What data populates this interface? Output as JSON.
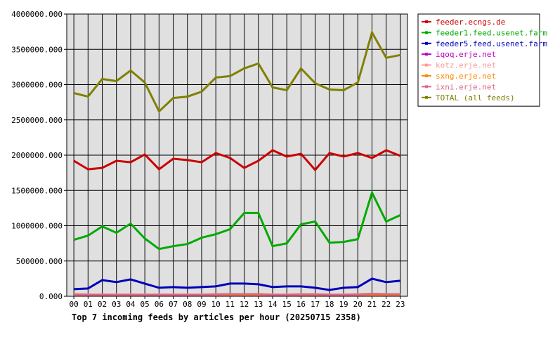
{
  "chart_data": {
    "type": "line",
    "title": "Top 7 incoming feeds by articles per hour (20250715 2358)",
    "xlabel": "",
    "ylabel": "",
    "ylim": [
      0,
      4000000
    ],
    "yticks": [
      "0.000",
      "500000.000",
      "1000000.000",
      "1500000.000",
      "2000000.000",
      "2500000.000",
      "3000000.000",
      "3500000.000",
      "4000000.000"
    ],
    "categories": [
      "00",
      "01",
      "02",
      "03",
      "04",
      "05",
      "06",
      "07",
      "08",
      "09",
      "10",
      "11",
      "12",
      "13",
      "14",
      "15",
      "16",
      "17",
      "18",
      "19",
      "20",
      "21",
      "22",
      "23"
    ],
    "grid": true,
    "legend_position": "right",
    "background": "#e0e0e0",
    "series": [
      {
        "name": "feeder.ecngs.de",
        "color": "#cc0000",
        "values": [
          1920000,
          1800000,
          1820000,
          1920000,
          1900000,
          2010000,
          1800000,
          1950000,
          1930000,
          1900000,
          2030000,
          1960000,
          1820000,
          1920000,
          2070000,
          1980000,
          2020000,
          1790000,
          2030000,
          1980000,
          2030000,
          1960000,
          2070000,
          1990000
        ]
      },
      {
        "name": "feeder1.feed.usenet.farm",
        "color": "#00aa00",
        "values": [
          800000,
          860000,
          990000,
          900000,
          1030000,
          820000,
          670000,
          710000,
          740000,
          830000,
          880000,
          950000,
          1180000,
          1180000,
          710000,
          750000,
          1020000,
          1060000,
          760000,
          770000,
          810000,
          1470000,
          1060000,
          1150000
        ]
      },
      {
        "name": "feeder5.feed.usenet.farm",
        "color": "#0000bb",
        "values": [
          100000,
          110000,
          230000,
          200000,
          240000,
          180000,
          120000,
          130000,
          120000,
          130000,
          140000,
          180000,
          180000,
          170000,
          130000,
          140000,
          140000,
          120000,
          90000,
          120000,
          130000,
          250000,
          200000,
          220000
        ]
      },
      {
        "name": "iqoq.erje.net",
        "color": "#bb00bb",
        "values": [
          20000,
          20000,
          20000,
          20000,
          20000,
          20000,
          20000,
          20000,
          20000,
          20000,
          20000,
          20000,
          20000,
          20000,
          20000,
          20000,
          20000,
          20000,
          20000,
          20000,
          20000,
          20000,
          20000,
          20000
        ]
      },
      {
        "name": "kotz.erje.net",
        "color": "#ff9999",
        "values": [
          30000,
          25000,
          25000,
          25000,
          25000,
          25000,
          25000,
          25000,
          25000,
          25000,
          30000,
          30000,
          30000,
          30000,
          25000,
          25000,
          30000,
          30000,
          25000,
          25000,
          30000,
          35000,
          30000,
          30000
        ]
      },
      {
        "name": "sxng.erje.net",
        "color": "#ff8800",
        "values": [
          15000,
          15000,
          15000,
          15000,
          15000,
          15000,
          15000,
          15000,
          15000,
          15000,
          15000,
          15000,
          15000,
          15000,
          15000,
          15000,
          15000,
          15000,
          15000,
          15000,
          15000,
          15000,
          15000,
          15000
        ]
      },
      {
        "name": "ixni.erje.net",
        "color": "#dd6688",
        "values": [
          25000,
          20000,
          20000,
          20000,
          20000,
          20000,
          20000,
          20000,
          20000,
          20000,
          25000,
          30000,
          30000,
          30000,
          20000,
          20000,
          25000,
          25000,
          20000,
          20000,
          25000,
          35000,
          30000,
          30000
        ]
      },
      {
        "name": "TOTAL (all feeds)",
        "color": "#808000",
        "values": [
          2880000,
          2830000,
          3080000,
          3050000,
          3200000,
          3030000,
          2620000,
          2810000,
          2830000,
          2900000,
          3100000,
          3120000,
          3230000,
          3300000,
          2960000,
          2920000,
          3230000,
          3020000,
          2930000,
          2920000,
          3030000,
          3740000,
          3380000,
          3420000
        ]
      }
    ]
  }
}
